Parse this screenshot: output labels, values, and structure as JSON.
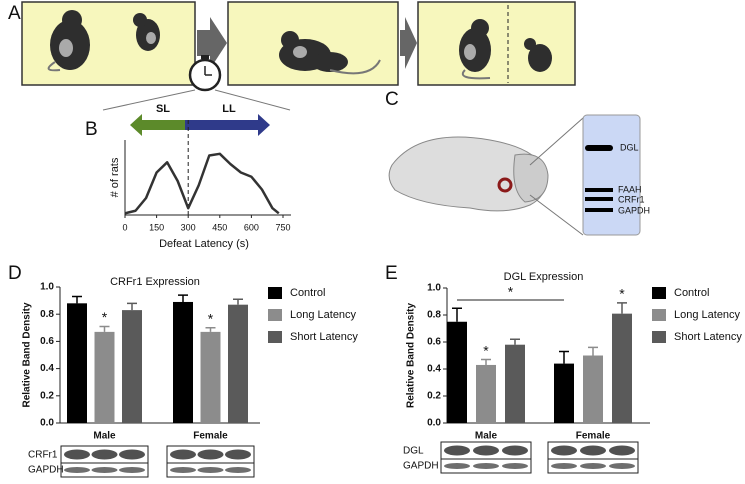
{
  "panel_labels": [
    "A",
    "B",
    "C",
    "D",
    "E"
  ],
  "arrow_labels": {
    "short": "SL",
    "long": "LL"
  },
  "brain_blot_labels": [
    "DGL",
    "FAAH",
    "CRFr1",
    "GAPDH"
  ],
  "chart_data": [
    {
      "type": "line",
      "x_label": "Defeat Latency (s)",
      "y_label": "# of rats",
      "x": [
        0,
        50,
        100,
        150,
        200,
        250,
        300,
        350,
        400,
        450,
        500,
        550,
        600,
        650,
        700,
        730
      ],
      "values": [
        0.02,
        0.05,
        0.2,
        0.5,
        0.62,
        0.4,
        0.08,
        0.35,
        0.7,
        0.72,
        0.6,
        0.5,
        0.45,
        0.3,
        0.08,
        0.02
      ],
      "xlim": [
        0,
        750
      ],
      "xticks": [
        0,
        150,
        300,
        450,
        600,
        750
      ],
      "ylim": [
        0,
        1
      ],
      "threshold": 300
    },
    {
      "type": "bar",
      "title": "CRFr1 Expression",
      "y_label": "Relative Band Density",
      "categories": [
        "Male",
        "Female"
      ],
      "series": [
        {
          "name": "Control",
          "color": "#000000",
          "values": [
            0.88,
            0.89
          ],
          "errors": [
            0.05,
            0.05
          ],
          "significance": [
            null,
            null
          ]
        },
        {
          "name": "Long Latency",
          "color": "#8c8c8c",
          "values": [
            0.67,
            0.67
          ],
          "errors": [
            0.04,
            0.03
          ],
          "significance": [
            "*",
            "*"
          ]
        },
        {
          "name": "Short Latency",
          "color": "#5a5a5a",
          "values": [
            0.83,
            0.87
          ],
          "errors": [
            0.05,
            0.04
          ],
          "significance": [
            null,
            null
          ]
        }
      ],
      "ylim": [
        0,
        1
      ],
      "yticks": [
        {
          "value": 0,
          "label": "0.0"
        },
        {
          "value": 0.2,
          "label": "0.2"
        },
        {
          "value": 0.4,
          "label": "0.4"
        },
        {
          "value": 0.6,
          "label": "0.6"
        },
        {
          "value": 0.8,
          "label": "0.8"
        },
        {
          "value": 1,
          "label": "1.0"
        }
      ],
      "blot_labels": [
        "CRFr1",
        "GAPDH"
      ]
    },
    {
      "type": "bar",
      "title": "DGL Expression",
      "y_label": "Relative Band Density",
      "categories": [
        "Male",
        "Female"
      ],
      "series": [
        {
          "name": "Control",
          "color": "#000000",
          "values": [
            0.75,
            0.44
          ],
          "errors": [
            0.1,
            0.09
          ],
          "significance": [
            null,
            null
          ]
        },
        {
          "name": "Long Latency",
          "color": "#8c8c8c",
          "values": [
            0.43,
            0.5
          ],
          "errors": [
            0.04,
            0.06
          ],
          "significance": [
            "*",
            null
          ]
        },
        {
          "name": "Short Latency",
          "color": "#5a5a5a",
          "values": [
            0.58,
            0.81
          ],
          "errors": [
            0.04,
            0.08
          ],
          "significance": [
            null,
            "*"
          ]
        }
      ],
      "bracket_label": "*",
      "ylim": [
        0,
        1
      ],
      "yticks": [
        {
          "value": 0,
          "label": "0.0"
        },
        {
          "value": 0.2,
          "label": "0.2"
        },
        {
          "value": 0.4,
          "label": "0.4"
        },
        {
          "value": 0.6,
          "label": "0.6"
        },
        {
          "value": 0.8,
          "label": "0.8"
        },
        {
          "value": 1,
          "label": "1.0"
        }
      ],
      "blot_labels": [
        "DGL",
        "GAPDH"
      ]
    }
  ]
}
